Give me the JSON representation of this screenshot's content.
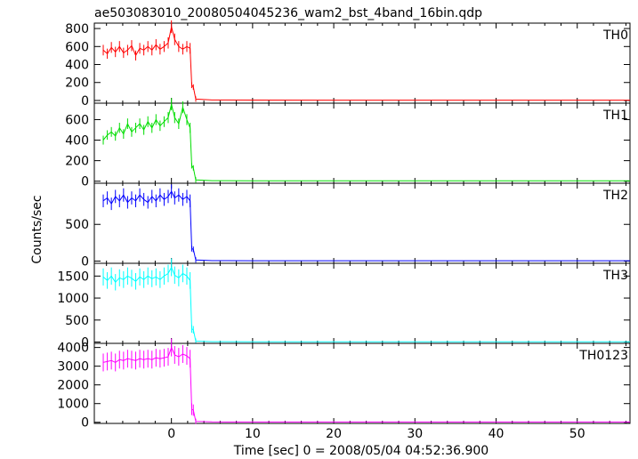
{
  "title": "ae503083010_20080504045236_wam2_bst_4band_16bin.qdp",
  "ylabel": "Counts/sec",
  "xlabel": "Time [sec] 0 = 2008/05/04 04:52:36.900",
  "chart_data": {
    "type": "line",
    "title": "ae503083010_20080504045236_wam2_bst_4band_16bin.qdp",
    "xlabel": "Time [sec] 0 = 2008/05/04 04:52:36.900",
    "ylabel": "Counts/sec",
    "xlim": [
      -9.5,
      56.5
    ],
    "x_ticks": [
      0,
      10,
      20,
      30,
      40,
      50
    ],
    "x_tick_labels": [
      "0",
      "10",
      "20",
      "30",
      "40",
      "50"
    ],
    "grid": false,
    "error_bars": true,
    "panels": [
      {
        "name": "TH0",
        "color": "#ff0000",
        "ylim": [
          -30,
          860
        ],
        "y_ticks": [
          0,
          200,
          400,
          600,
          800
        ],
        "y_tick_labels": [
          "0",
          "200",
          "400",
          "600",
          "800"
        ],
        "points": [
          [
            -8.4,
            560
          ],
          [
            -7.9,
            520
          ],
          [
            -7.4,
            590
          ],
          [
            -6.9,
            540
          ],
          [
            -6.4,
            600
          ],
          [
            -5.9,
            530
          ],
          [
            -5.4,
            560
          ],
          [
            -4.9,
            610
          ],
          [
            -4.4,
            500
          ],
          [
            -3.9,
            580
          ],
          [
            -3.4,
            560
          ],
          [
            -2.9,
            600
          ],
          [
            -2.4,
            560
          ],
          [
            -1.9,
            620
          ],
          [
            -1.4,
            570
          ],
          [
            -0.9,
            600
          ],
          [
            -0.4,
            640
          ],
          [
            0.0,
            820
          ],
          [
            0.4,
            680
          ],
          [
            0.9,
            600
          ],
          [
            1.4,
            570
          ],
          [
            1.9,
            600
          ],
          [
            2.3,
            580
          ],
          [
            2.5,
            170
          ],
          [
            2.7,
            150
          ],
          [
            3.0,
            15
          ],
          [
            5,
            6
          ],
          [
            10,
            5
          ],
          [
            20,
            4
          ],
          [
            30,
            4
          ],
          [
            40,
            4
          ],
          [
            50,
            4
          ],
          [
            56.5,
            4
          ]
        ]
      },
      {
        "name": "TH1",
        "color": "#00dd00",
        "ylim": [
          -20,
          760
        ],
        "y_ticks": [
          0,
          200,
          400,
          600
        ],
        "y_tick_labels": [
          "0",
          "200",
          "400",
          "600"
        ],
        "points": [
          [
            -8.4,
            400
          ],
          [
            -7.9,
            450
          ],
          [
            -7.4,
            480
          ],
          [
            -6.9,
            440
          ],
          [
            -6.4,
            520
          ],
          [
            -5.9,
            460
          ],
          [
            -5.4,
            560
          ],
          [
            -4.9,
            480
          ],
          [
            -4.4,
            520
          ],
          [
            -3.9,
            560
          ],
          [
            -3.4,
            500
          ],
          [
            -2.9,
            580
          ],
          [
            -2.4,
            520
          ],
          [
            -1.9,
            600
          ],
          [
            -1.4,
            540
          ],
          [
            -0.9,
            580
          ],
          [
            -0.4,
            620
          ],
          [
            0.0,
            750
          ],
          [
            0.4,
            620
          ],
          [
            0.9,
            560
          ],
          [
            1.4,
            720
          ],
          [
            1.9,
            600
          ],
          [
            2.3,
            520
          ],
          [
            2.5,
            150
          ],
          [
            2.7,
            130
          ],
          [
            3.0,
            12
          ],
          [
            5,
            5
          ],
          [
            10,
            4
          ],
          [
            20,
            4
          ],
          [
            30,
            4
          ],
          [
            40,
            4
          ],
          [
            50,
            4
          ],
          [
            56.5,
            4
          ]
        ]
      },
      {
        "name": "TH2",
        "color": "#0000ff",
        "ylim": [
          -30,
          1060
        ],
        "y_ticks": [
          0,
          500
        ],
        "y_tick_labels": [
          "0",
          "500"
        ],
        "points": [
          [
            -8.4,
            820
          ],
          [
            -7.9,
            860
          ],
          [
            -7.4,
            780
          ],
          [
            -6.9,
            880
          ],
          [
            -6.4,
            820
          ],
          [
            -5.9,
            900
          ],
          [
            -5.4,
            800
          ],
          [
            -4.9,
            860
          ],
          [
            -4.4,
            820
          ],
          [
            -3.9,
            900
          ],
          [
            -3.4,
            840
          ],
          [
            -2.9,
            800
          ],
          [
            -2.4,
            880
          ],
          [
            -1.9,
            820
          ],
          [
            -1.4,
            900
          ],
          [
            -0.9,
            840
          ],
          [
            -0.4,
            880
          ],
          [
            0.0,
            950
          ],
          [
            0.4,
            860
          ],
          [
            0.9,
            900
          ],
          [
            1.4,
            840
          ],
          [
            1.9,
            880
          ],
          [
            2.3,
            820
          ],
          [
            2.5,
            170
          ],
          [
            2.7,
            160
          ],
          [
            3.0,
            15
          ],
          [
            5,
            6
          ],
          [
            10,
            5
          ],
          [
            20,
            5
          ],
          [
            30,
            5
          ],
          [
            40,
            5
          ],
          [
            50,
            5
          ],
          [
            56.5,
            5
          ]
        ]
      },
      {
        "name": "TH3",
        "color": "#00ffff",
        "ylim": [
          -30,
          1790
        ],
        "y_ticks": [
          0,
          500,
          1000,
          1500
        ],
        "y_tick_labels": [
          "0",
          "500",
          "1000",
          "1500"
        ],
        "points": [
          [
            -8.4,
            1480
          ],
          [
            -7.9,
            1400
          ],
          [
            -7.4,
            1500
          ],
          [
            -6.9,
            1360
          ],
          [
            -6.4,
            1460
          ],
          [
            -5.9,
            1420
          ],
          [
            -5.4,
            1500
          ],
          [
            -4.9,
            1450
          ],
          [
            -4.4,
            1380
          ],
          [
            -3.9,
            1480
          ],
          [
            -3.4,
            1420
          ],
          [
            -2.9,
            1500
          ],
          [
            -2.4,
            1440
          ],
          [
            -1.9,
            1480
          ],
          [
            -1.4,
            1420
          ],
          [
            -0.9,
            1500
          ],
          [
            -0.4,
            1560
          ],
          [
            0.0,
            1700
          ],
          [
            0.4,
            1520
          ],
          [
            0.9,
            1460
          ],
          [
            1.4,
            1560
          ],
          [
            1.9,
            1500
          ],
          [
            2.3,
            1400
          ],
          [
            2.5,
            300
          ],
          [
            2.7,
            280
          ],
          [
            3.0,
            20
          ],
          [
            5,
            8
          ],
          [
            10,
            6
          ],
          [
            20,
            6
          ],
          [
            30,
            6
          ],
          [
            40,
            6
          ],
          [
            50,
            6
          ],
          [
            56.5,
            6
          ]
        ]
      },
      {
        "name": "TH0123",
        "color": "#ff00ff",
        "ylim": [
          -60,
          4220
        ],
        "y_ticks": [
          0,
          1000,
          2000,
          3000,
          4000
        ],
        "y_tick_labels": [
          "0",
          "1000",
          "2000",
          "3000",
          "4000"
        ],
        "points": [
          [
            -8.4,
            3200
          ],
          [
            -7.9,
            3250
          ],
          [
            -7.4,
            3300
          ],
          [
            -6.9,
            3200
          ],
          [
            -6.4,
            3350
          ],
          [
            -5.9,
            3300
          ],
          [
            -5.4,
            3400
          ],
          [
            -4.9,
            3350
          ],
          [
            -4.4,
            3300
          ],
          [
            -3.9,
            3400
          ],
          [
            -3.4,
            3350
          ],
          [
            -2.9,
            3400
          ],
          [
            -2.4,
            3350
          ],
          [
            -1.9,
            3450
          ],
          [
            -1.4,
            3400
          ],
          [
            -0.9,
            3450
          ],
          [
            -0.4,
            3500
          ],
          [
            0.0,
            4000
          ],
          [
            0.4,
            3600
          ],
          [
            0.9,
            3500
          ],
          [
            1.4,
            3650
          ],
          [
            1.9,
            3550
          ],
          [
            2.3,
            3400
          ],
          [
            2.5,
            700
          ],
          [
            2.7,
            650
          ],
          [
            3.0,
            50
          ],
          [
            5,
            20
          ],
          [
            10,
            18
          ],
          [
            20,
            18
          ],
          [
            30,
            18
          ],
          [
            40,
            18
          ],
          [
            50,
            18
          ],
          [
            56.5,
            18
          ]
        ]
      }
    ]
  }
}
